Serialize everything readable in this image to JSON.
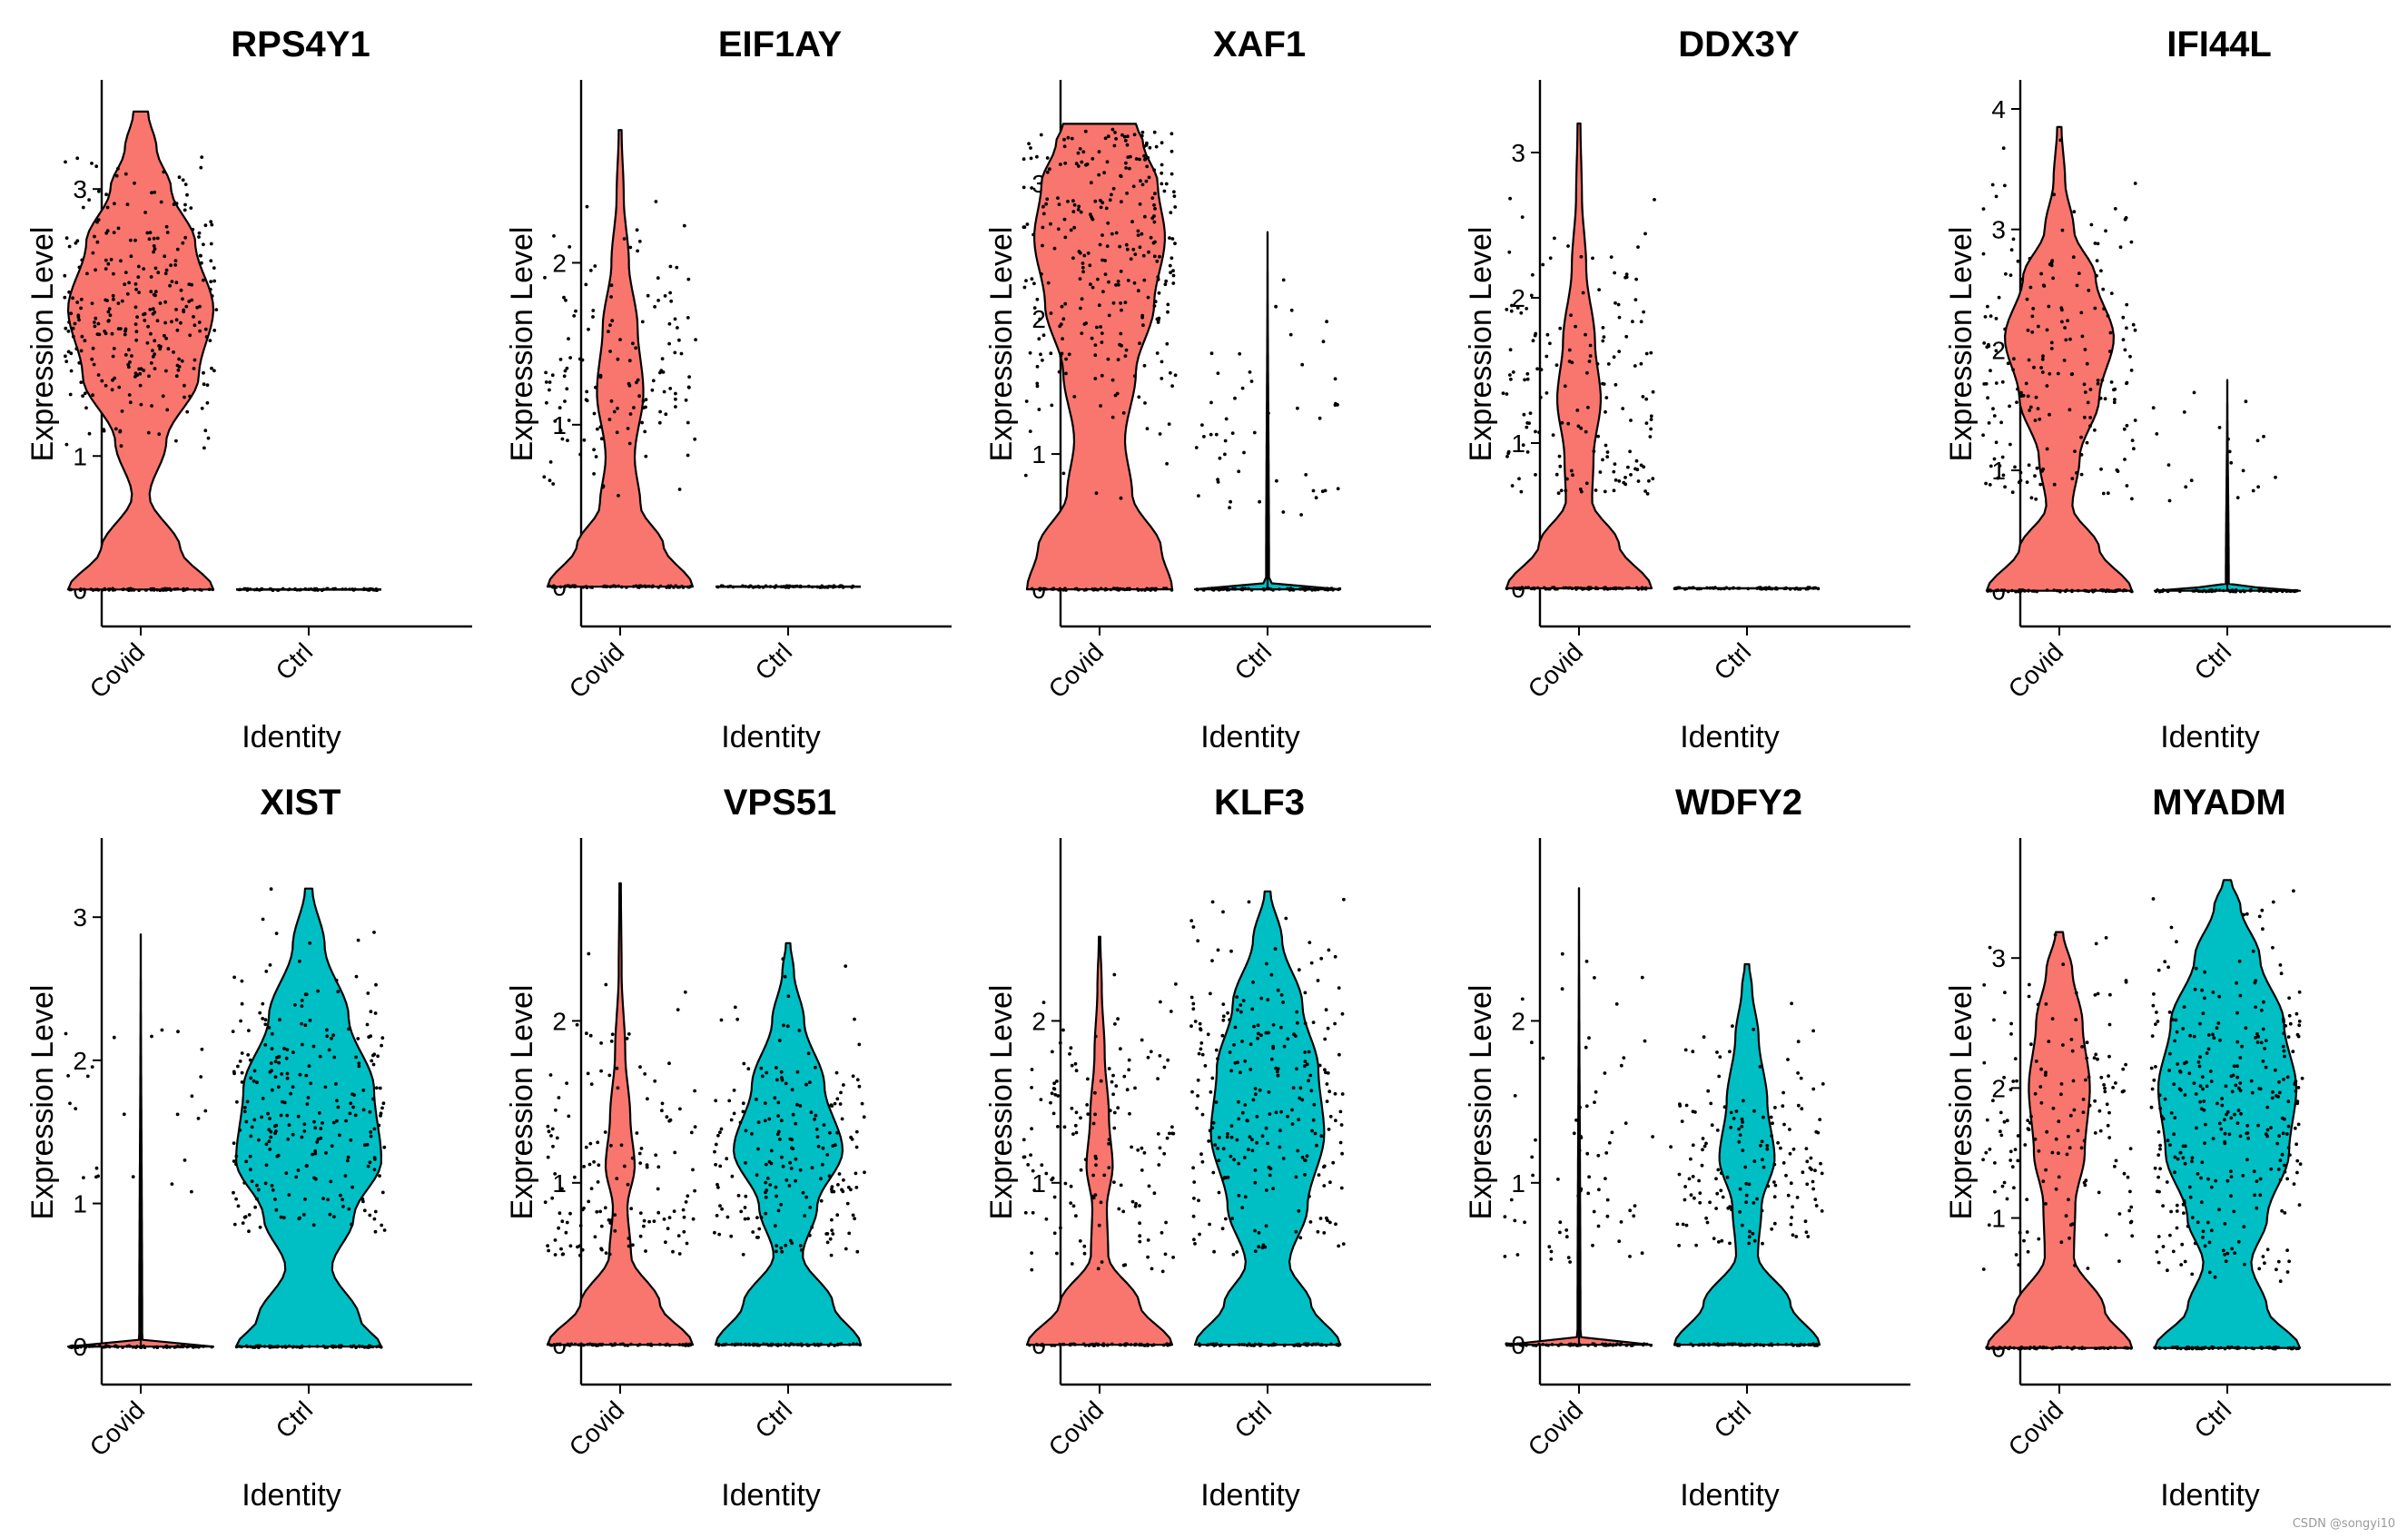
{
  "figure": {
    "watermark": "CSDN @songyi10",
    "y_axis_label": "Expression Level",
    "x_axis_label": "Identity",
    "colors": {
      "Covid": "#F8766D",
      "Ctrl": "#00BFC4"
    }
  },
  "chart_data": [
    {
      "type": "violin",
      "title": "RPS4Y1",
      "categories": [
        "Covid",
        "Ctrl"
      ],
      "xlabel": "Identity",
      "ylabel": "Expression Level",
      "ylim": [
        -0.1,
        3.6
      ],
      "yticks": [
        0,
        1,
        2,
        3
      ],
      "series": [
        {
          "name": "Covid",
          "max": 3.58,
          "shape": [
            [
              0,
              1.0
            ],
            [
              0.3,
              0.55
            ],
            [
              0.7,
              0.12
            ],
            [
              1.1,
              0.35
            ],
            [
              1.6,
              0.8
            ],
            [
              2.1,
              1.0
            ],
            [
              2.6,
              0.75
            ],
            [
              3.0,
              0.42
            ],
            [
              3.3,
              0.22
            ],
            [
              3.58,
              0.1
            ]
          ],
          "pts": 300,
          "pmin": 1.05,
          "pmax": 3.25,
          "center": 2.1
        },
        {
          "name": "Ctrl",
          "max": 0.0,
          "shape": [
            [
              0,
              1.0
            ]
          ],
          "pts": 0
        }
      ]
    },
    {
      "type": "violin",
      "title": "EIF1AY",
      "categories": [
        "Covid",
        "Ctrl"
      ],
      "xlabel": "Identity",
      "ylabel": "Expression Level",
      "ylim": [
        -0.1,
        2.95
      ],
      "yticks": [
        0,
        1,
        2
      ],
      "series": [
        {
          "name": "Covid",
          "max": 2.82,
          "shape": [
            [
              0,
              1.0
            ],
            [
              0.25,
              0.6
            ],
            [
              0.5,
              0.28
            ],
            [
              0.8,
              0.2
            ],
            [
              1.2,
              0.32
            ],
            [
              1.6,
              0.24
            ],
            [
              2.0,
              0.12
            ],
            [
              2.4,
              0.05
            ],
            [
              2.82,
              0.02
            ]
          ],
          "pts": 140,
          "pmin": 0.55,
          "pmax": 2.4,
          "center": 1.3
        },
        {
          "name": "Ctrl",
          "max": 0.0,
          "shape": [
            [
              0,
              1.0
            ]
          ],
          "pts": 0
        }
      ]
    },
    {
      "type": "violin",
      "title": "XAF1",
      "categories": [
        "Covid",
        "Ctrl"
      ],
      "xlabel": "Identity",
      "ylabel": "Expression Level",
      "ylim": [
        -0.1,
        3.55
      ],
      "yticks": [
        0,
        1,
        2,
        3
      ],
      "series": [
        {
          "name": "Covid",
          "max": 3.44,
          "shape": [
            [
              0,
              1.0
            ],
            [
              0.3,
              0.85
            ],
            [
              0.7,
              0.45
            ],
            [
              1.1,
              0.35
            ],
            [
              1.6,
              0.5
            ],
            [
              2.1,
              0.75
            ],
            [
              2.6,
              0.9
            ],
            [
              3.0,
              0.8
            ],
            [
              3.3,
              0.6
            ],
            [
              3.44,
              0.5
            ]
          ],
          "pts": 300,
          "pmin": 0.55,
          "pmax": 3.4,
          "center": 2.5
        },
        {
          "name": "Ctrl",
          "max": 2.64,
          "shape": [
            [
              0,
              1.0
            ],
            [
              0.05,
              0.02
            ],
            [
              2.64,
              0.0
            ]
          ],
          "pts": 50,
          "pmin": 0.55,
          "pmax": 2.6,
          "center": 1.2
        }
      ]
    },
    {
      "type": "violin",
      "title": "DDX3Y",
      "categories": [
        "Covid",
        "Ctrl"
      ],
      "xlabel": "Identity",
      "ylabel": "Expression Level",
      "ylim": [
        -0.1,
        3.3
      ],
      "yticks": [
        0,
        1,
        2,
        3
      ],
      "series": [
        {
          "name": "Covid",
          "max": 3.2,
          "shape": [
            [
              0,
              1.0
            ],
            [
              0.3,
              0.55
            ],
            [
              0.6,
              0.18
            ],
            [
              0.9,
              0.2
            ],
            [
              1.3,
              0.3
            ],
            [
              1.7,
              0.22
            ],
            [
              2.2,
              0.1
            ],
            [
              2.7,
              0.04
            ],
            [
              3.2,
              0.02
            ]
          ],
          "pts": 160,
          "pmin": 0.65,
          "pmax": 3.2,
          "center": 1.3
        },
        {
          "name": "Ctrl",
          "max": 0.0,
          "shape": [
            [
              0,
              1.0
            ]
          ],
          "pts": 0
        }
      ]
    },
    {
      "type": "violin",
      "title": "IFI44L",
      "categories": [
        "Covid",
        "Ctrl"
      ],
      "xlabel": "Identity",
      "ylabel": "Expression Level",
      "ylim": [
        -0.1,
        4.0
      ],
      "yticks": [
        0,
        1,
        2,
        3,
        4
      ],
      "series": [
        {
          "name": "Covid",
          "max": 3.85,
          "shape": [
            [
              0,
              1.0
            ],
            [
              0.35,
              0.55
            ],
            [
              0.7,
              0.18
            ],
            [
              1.1,
              0.28
            ],
            [
              1.6,
              0.55
            ],
            [
              2.1,
              0.75
            ],
            [
              2.6,
              0.5
            ],
            [
              3.0,
              0.2
            ],
            [
              3.4,
              0.08
            ],
            [
              3.85,
              0.03
            ]
          ],
          "pts": 200,
          "pmin": 0.75,
          "pmax": 3.85,
          "center": 1.9
        },
        {
          "name": "Ctrl",
          "max": 1.75,
          "shape": [
            [
              0,
              1.0
            ],
            [
              0.05,
              0.02
            ],
            [
              1.75,
              0.0
            ]
          ],
          "pts": 20,
          "pmin": 0.6,
          "pmax": 1.75,
          "center": 1.2
        }
      ]
    },
    {
      "type": "violin",
      "title": "XIST",
      "categories": [
        "Covid",
        "Ctrl"
      ],
      "xlabel": "Identity",
      "ylabel": "Expression Level",
      "ylim": [
        -0.1,
        3.35
      ],
      "yticks": [
        0,
        1,
        2,
        3
      ],
      "series": [
        {
          "name": "Covid",
          "max": 2.88,
          "shape": [
            [
              0,
              1.0
            ],
            [
              0.05,
              0.02
            ],
            [
              2.88,
              0.0
            ]
          ],
          "pts": 25,
          "pmin": 1.0,
          "pmax": 2.88,
          "center": 1.8
        },
        {
          "name": "Ctrl",
          "max": 3.2,
          "shape": [
            [
              0,
              1.0
            ],
            [
              0.2,
              0.7
            ],
            [
              0.55,
              0.32
            ],
            [
              0.9,
              0.62
            ],
            [
              1.3,
              1.0
            ],
            [
              1.8,
              0.9
            ],
            [
              2.3,
              0.55
            ],
            [
              2.8,
              0.22
            ],
            [
              3.2,
              0.05
            ]
          ],
          "pts": 260,
          "pmin": 0.8,
          "pmax": 3.2,
          "center": 1.6
        }
      ]
    },
    {
      "type": "violin",
      "title": "VPS51",
      "categories": [
        "Covid",
        "Ctrl"
      ],
      "xlabel": "Identity",
      "ylabel": "Expression Level",
      "ylim": [
        -0.1,
        2.95
      ],
      "yticks": [
        0,
        1,
        2
      ],
      "series": [
        {
          "name": "Covid",
          "max": 2.85,
          "shape": [
            [
              0,
              1.0
            ],
            [
              0.25,
              0.55
            ],
            [
              0.55,
              0.15
            ],
            [
              0.85,
              0.1
            ],
            [
              1.1,
              0.2
            ],
            [
              1.4,
              0.14
            ],
            [
              1.8,
              0.07
            ],
            [
              2.3,
              0.02
            ],
            [
              2.85,
              0.01
            ]
          ],
          "pts": 140,
          "pmin": 0.55,
          "pmax": 2.85,
          "center": 1.1
        },
        {
          "name": "Ctrl",
          "max": 2.48,
          "shape": [
            [
              0,
              1.0
            ],
            [
              0.25,
              0.62
            ],
            [
              0.55,
              0.2
            ],
            [
              0.85,
              0.4
            ],
            [
              1.2,
              0.75
            ],
            [
              1.6,
              0.5
            ],
            [
              2.0,
              0.22
            ],
            [
              2.3,
              0.08
            ],
            [
              2.48,
              0.03
            ]
          ],
          "pts": 200,
          "pmin": 0.55,
          "pmax": 2.45,
          "center": 1.2
        }
      ]
    },
    {
      "type": "violin",
      "title": "KLF3",
      "categories": [
        "Covid",
        "Ctrl"
      ],
      "xlabel": "Identity",
      "ylabel": "Expression Level",
      "ylim": [
        -0.1,
        2.95
      ],
      "yticks": [
        0,
        1,
        2
      ],
      "series": [
        {
          "name": "Covid",
          "max": 2.52,
          "shape": [
            [
              0,
              1.0
            ],
            [
              0.25,
              0.55
            ],
            [
              0.55,
              0.12
            ],
            [
              0.85,
              0.1
            ],
            [
              1.1,
              0.18
            ],
            [
              1.4,
              0.13
            ],
            [
              1.8,
              0.07
            ],
            [
              2.2,
              0.03
            ],
            [
              2.52,
              0.01
            ]
          ],
          "pts": 150,
          "pmin": 0.45,
          "pmax": 2.5,
          "center": 1.2
        },
        {
          "name": "Ctrl",
          "max": 2.8,
          "shape": [
            [
              0,
              1.0
            ],
            [
              0.25,
              0.6
            ],
            [
              0.5,
              0.3
            ],
            [
              0.85,
              0.55
            ],
            [
              1.3,
              0.78
            ],
            [
              1.7,
              0.7
            ],
            [
              2.1,
              0.48
            ],
            [
              2.5,
              0.2
            ],
            [
              2.8,
              0.04
            ]
          ],
          "pts": 260,
          "pmin": 0.55,
          "pmax": 2.8,
          "center": 1.5
        }
      ]
    },
    {
      "type": "violin",
      "title": "WDFY2",
      "categories": [
        "Covid",
        "Ctrl"
      ],
      "xlabel": "Identity",
      "ylabel": "Expression Level",
      "ylim": [
        -0.1,
        2.95
      ],
      "yticks": [
        0,
        1,
        2
      ],
      "series": [
        {
          "name": "Covid",
          "max": 2.82,
          "shape": [
            [
              0,
              1.0
            ],
            [
              0.05,
              0.02
            ],
            [
              2.82,
              0.0
            ]
          ],
          "pts": 70,
          "pmin": 0.5,
          "pmax": 2.82,
          "center": 1.1
        },
        {
          "name": "Ctrl",
          "max": 2.35,
          "shape": [
            [
              0,
              1.0
            ],
            [
              0.25,
              0.6
            ],
            [
              0.55,
              0.15
            ],
            [
              0.85,
              0.2
            ],
            [
              1.15,
              0.38
            ],
            [
              1.5,
              0.28
            ],
            [
              1.9,
              0.16
            ],
            [
              2.2,
              0.07
            ],
            [
              2.35,
              0.03
            ]
          ],
          "pts": 160,
          "pmin": 0.6,
          "pmax": 2.35,
          "center": 1.2
        }
      ]
    },
    {
      "type": "violin",
      "title": "MYADM",
      "categories": [
        "Covid",
        "Ctrl"
      ],
      "xlabel": "Identity",
      "ylabel": "Expression Level",
      "ylim": [
        -0.1,
        3.7
      ],
      "yticks": [
        0,
        1,
        2,
        3
      ],
      "series": [
        {
          "name": "Covid",
          "max": 3.2,
          "shape": [
            [
              0,
              1.0
            ],
            [
              0.3,
              0.62
            ],
            [
              0.7,
              0.2
            ],
            [
              1.1,
              0.22
            ],
            [
              1.5,
              0.35
            ],
            [
              2.0,
              0.42
            ],
            [
              2.5,
              0.32
            ],
            [
              2.9,
              0.18
            ],
            [
              3.2,
              0.05
            ]
          ],
          "pts": 160,
          "pmin": 0.6,
          "pmax": 3.2,
          "center": 1.8
        },
        {
          "name": "Ctrl",
          "max": 3.6,
          "shape": [
            [
              0,
              1.0
            ],
            [
              0.3,
              0.55
            ],
            [
              0.65,
              0.33
            ],
            [
              1.0,
              0.55
            ],
            [
              1.5,
              0.85
            ],
            [
              2.0,
              0.95
            ],
            [
              2.5,
              0.78
            ],
            [
              3.0,
              0.45
            ],
            [
              3.4,
              0.18
            ],
            [
              3.6,
              0.05
            ]
          ],
          "pts": 320,
          "pmin": 0.5,
          "pmax": 3.6,
          "center": 1.8
        }
      ]
    }
  ]
}
